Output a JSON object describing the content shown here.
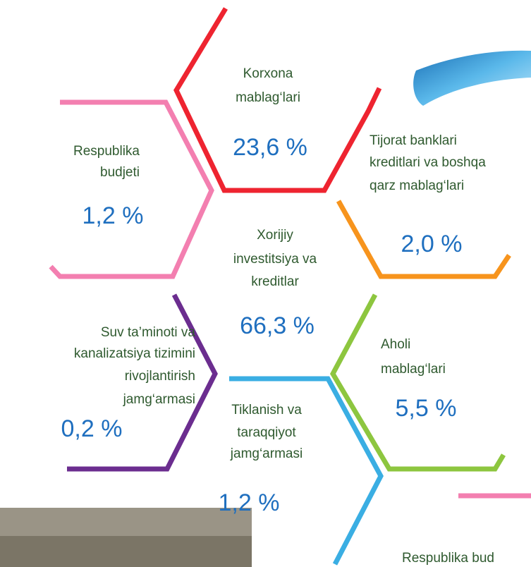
{
  "items": [
    {
      "label": [
        "Korxona",
        "mablag‘lari"
      ],
      "value": "23,6 %"
    },
    {
      "label": [
        "Respublika",
        "budjeti"
      ],
      "value": "1,2 %"
    },
    {
      "label": [
        "Tijorat banklari",
        "kreditlari va boshqa",
        "qarz mablag‘lari"
      ],
      "value": "2,0 %"
    },
    {
      "label": [
        "Xorijiy",
        "investitsiya va",
        "kreditlar"
      ],
      "value": "66,3 %"
    },
    {
      "label": [
        "Suv ta’minoti va",
        "kanalizatsiya tizimini",
        "rivojlantirish",
        "jamg‘armasi"
      ],
      "value": "0,2 %"
    },
    {
      "label": [
        "Aholi",
        "mablag‘lari"
      ],
      "value": "5,5 %"
    },
    {
      "label": [
        "Tiklanish va",
        "taraqqiyot",
        "jamg‘armasi"
      ],
      "value": "1,2 %"
    }
  ],
  "footer": "Respublika bud"
}
